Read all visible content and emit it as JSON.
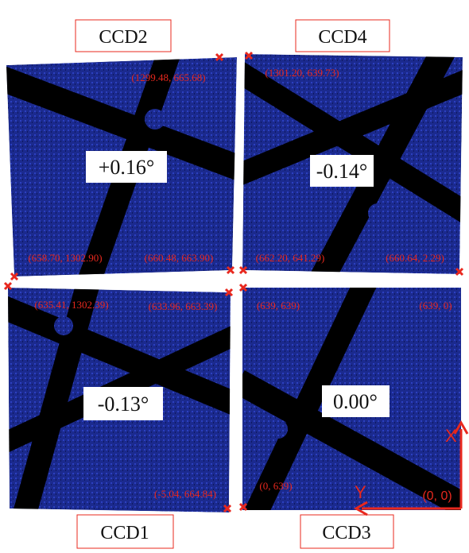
{
  "panels": [
    {
      "label": "CCD2",
      "angle": "+0.16°",
      "corners": [
        "(1299.48, 665.68)",
        "(658.70, 1302.90)",
        "(660.48, 663.90)"
      ]
    },
    {
      "label": "CCD4",
      "angle": "-0.14°",
      "corners": [
        "(1301.20, 639.73)",
        "(662.20, 641.29)",
        "(660.64, 2.29)"
      ]
    },
    {
      "label": "CCD1",
      "angle": "-0.13°",
      "corners": [
        "(635.41, 1302.39)",
        "(633.96, 663.39)",
        "(-5.04, 664.84)"
      ]
    },
    {
      "label": "CCD3",
      "angle": "0.00°",
      "corners": [
        "(639, 639)",
        "(639, 0)",
        "(0, 639)"
      ]
    }
  ],
  "axes": {
    "x": "X",
    "y": "Y",
    "origin": "(0, 0)"
  }
}
